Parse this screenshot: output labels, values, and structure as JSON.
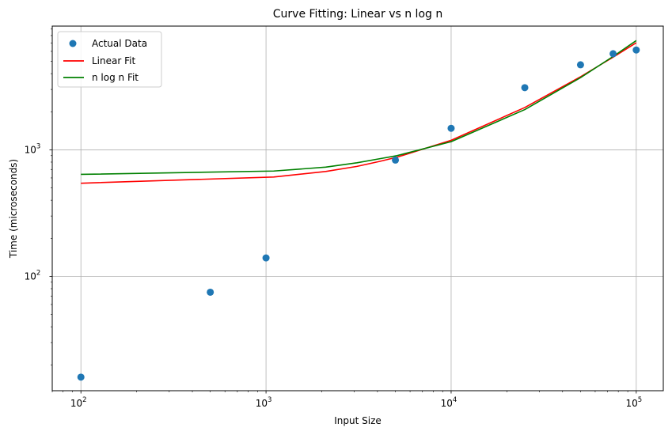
{
  "chart_data": {
    "type": "line",
    "title": "Curve Fitting: Linear vs n log n",
    "xlabel": "Input Size",
    "ylabel": "Time (microseconds)",
    "xscale": "log",
    "yscale": "log",
    "xlim": [
      70,
      140000
    ],
    "ylim": [
      12.5,
      9500
    ],
    "grid": true,
    "legend_position": "upper-left",
    "x_ticks": [
      {
        "base": "10",
        "exp": "2",
        "value": 100
      },
      {
        "base": "10",
        "exp": "3",
        "value": 1000
      },
      {
        "base": "10",
        "exp": "4",
        "value": 10000
      },
      {
        "base": "10",
        "exp": "5",
        "value": 100000
      }
    ],
    "y_ticks": [
      {
        "base": "10",
        "exp": "2",
        "value": 100
      },
      {
        "base": "10",
        "exp": "3",
        "value": 1000
      }
    ],
    "scatter_series": {
      "name": "Actual Data",
      "color": "#1f77b4",
      "x": [
        100,
        500,
        1000,
        5000,
        10000,
        25000,
        50000,
        75000,
        100000
      ],
      "y": [
        16,
        75,
        140,
        830,
        1480,
        3100,
        4700,
        5750,
        6150
      ]
    },
    "line_series": [
      {
        "name": "Linear Fit",
        "color": "#ff0000",
        "x": [
          100,
          1100,
          2100,
          3100,
          4100,
          5100,
          10000,
          25000,
          50000,
          75000,
          100000
        ],
        "y": [
          545,
          610,
          675,
          740,
          810,
          875,
          1190,
          2160,
          3780,
          5400,
          7020
        ]
      },
      {
        "name": "n log n Fit",
        "color": "#008000",
        "x": [
          100,
          1100,
          2100,
          3100,
          4100,
          5100,
          10000,
          25000,
          50000,
          75000,
          100000
        ],
        "y": [
          640,
          680,
          730,
          790,
          850,
          900,
          1160,
          2080,
          3720,
          5470,
          7300
        ]
      }
    ]
  }
}
